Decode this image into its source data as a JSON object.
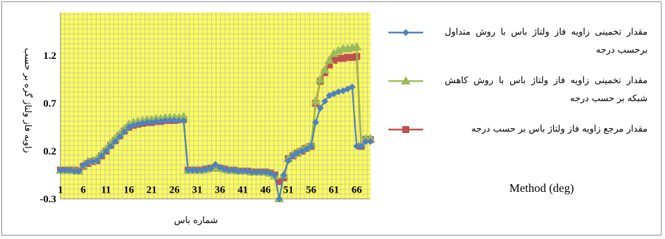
{
  "chart_data": {
    "type": "line",
    "xlabel": "شماره باس",
    "ylabel": "زاویه فاز ولتاژ گره بر حسب",
    "x_tick_labels": [
      "1",
      "6",
      "11",
      "16",
      "21",
      "26",
      "31",
      "36",
      "41",
      "46",
      "51",
      "56",
      "61",
      "66"
    ],
    "y_tick_labels": [
      "-0.3",
      "0.2",
      "0.7",
      "1.2"
    ],
    "ylim": [
      -0.3,
      1.65
    ],
    "xlim": [
      1,
      69
    ],
    "grid": true,
    "plot_background": "#ffff55",
    "grid_color": "#bdbdbd",
    "legend_position": "right",
    "legend_footer": "Method (deg)",
    "x": [
      1,
      2,
      3,
      4,
      5,
      6,
      7,
      8,
      9,
      10,
      11,
      12,
      13,
      14,
      15,
      16,
      17,
      18,
      19,
      20,
      21,
      22,
      23,
      24,
      25,
      26,
      27,
      28,
      29,
      30,
      31,
      32,
      33,
      34,
      35,
      36,
      37,
      38,
      39,
      40,
      41,
      42,
      43,
      44,
      45,
      46,
      47,
      48,
      49,
      50,
      51,
      52,
      53,
      54,
      55,
      56,
      57,
      58,
      59,
      60,
      61,
      62,
      63,
      64,
      65,
      66,
      67,
      68,
      69
    ],
    "series": [
      {
        "name": "مقدار تخمینی زاویه فاز ولتاژ باس با روش متداول برحسب درجه",
        "color": "#4f81bd",
        "marker": "diamond",
        "values": [
          0.0,
          0.0,
          0.0,
          -0.01,
          -0.01,
          0.05,
          0.08,
          0.09,
          0.1,
          0.15,
          0.2,
          0.25,
          0.3,
          0.35,
          0.4,
          0.45,
          0.47,
          0.48,
          0.49,
          0.5,
          0.5,
          0.51,
          0.51,
          0.52,
          0.52,
          0.52,
          0.52,
          0.52,
          0.0,
          0.0,
          0.0,
          0.0,
          0.01,
          0.02,
          0.06,
          0.03,
          0.01,
          0.0,
          0.0,
          -0.01,
          -0.01,
          -0.01,
          -0.02,
          -0.02,
          -0.02,
          -0.02,
          -0.03,
          -0.05,
          -0.3,
          -0.05,
          0.1,
          0.15,
          0.18,
          0.2,
          0.22,
          0.25,
          0.5,
          0.65,
          0.72,
          0.78,
          0.8,
          0.82,
          0.83,
          0.85,
          0.87,
          0.25,
          0.25,
          0.3,
          0.3
        ]
      },
      {
        "name": "مقدار تخمینی زاویه فاز ولتاژ باس با روش کاهش شبکه بر حسب درجه",
        "color": "#9bbb59",
        "marker": "triangle",
        "values": [
          0.0,
          0.0,
          0.0,
          0.0,
          -0.01,
          0.05,
          0.09,
          0.1,
          0.12,
          0.17,
          0.22,
          0.28,
          0.33,
          0.38,
          0.43,
          0.48,
          0.5,
          0.51,
          0.52,
          0.53,
          0.53,
          0.54,
          0.54,
          0.55,
          0.55,
          0.55,
          0.55,
          0.56,
          0.0,
          0.0,
          0.0,
          0.0,
          0.01,
          0.02,
          0.03,
          0.02,
          0.01,
          0.0,
          0.0,
          -0.01,
          -0.01,
          -0.01,
          -0.02,
          -0.02,
          -0.02,
          -0.02,
          -0.03,
          -0.06,
          -0.3,
          -0.05,
          0.12,
          0.16,
          0.19,
          0.22,
          0.24,
          0.27,
          0.72,
          0.95,
          1.05,
          1.15,
          1.22,
          1.25,
          1.27,
          1.27,
          1.28,
          1.29,
          0.27,
          0.33,
          0.33
        ]
      },
      {
        "name": "مقدار مرجع زاویه فاز ولتاژ باس بر حسب درجه",
        "color": "#c0504d",
        "marker": "square",
        "values": [
          0.0,
          0.0,
          0.0,
          0.0,
          -0.01,
          0.04,
          0.07,
          0.09,
          0.1,
          0.15,
          0.2,
          0.26,
          0.31,
          0.36,
          0.41,
          0.45,
          0.47,
          0.48,
          0.49,
          0.5,
          0.5,
          0.51,
          0.51,
          0.52,
          0.52,
          0.52,
          0.53,
          0.53,
          0.0,
          0.0,
          0.0,
          0.0,
          0.01,
          0.02,
          0.02,
          0.02,
          0.01,
          0.0,
          0.0,
          -0.01,
          -0.01,
          -0.01,
          -0.02,
          -0.02,
          -0.02,
          -0.02,
          -0.03,
          -0.05,
          -0.12,
          -0.08,
          0.12,
          0.15,
          0.18,
          0.2,
          0.23,
          0.25,
          0.7,
          0.93,
          1.02,
          1.1,
          1.15,
          1.17,
          1.17,
          1.18,
          1.18,
          1.19,
          0.25,
          0.32,
          0.32
        ]
      }
    ]
  }
}
